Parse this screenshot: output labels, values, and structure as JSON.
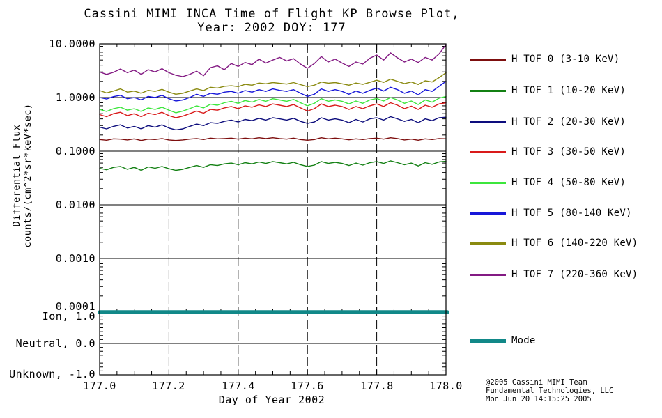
{
  "title": {
    "line1": "Cassini MIMI INCA Time of Flight KP Browse Plot,",
    "line2": "Year: 2002 DOY: 177"
  },
  "axes": {
    "y_title_line1": "Differential Flux",
    "y_title_line2": "counts/(cm^2*sr*keV*sec)",
    "x_title": "Day of Year 2002",
    "y_tick_labels": [
      "10.0000",
      "1.0000",
      "0.1000",
      "0.0100",
      "0.0010",
      "0.0001"
    ],
    "mode_tick_labels": [
      "Ion, 1.0",
      "Neutral, 0.0",
      "Unknown, -1.0"
    ],
    "x_tick_labels": [
      "177.0",
      "177.2",
      "177.4",
      "177.6",
      "177.8",
      "178.0"
    ]
  },
  "credits": {
    "line1": "@2005 Cassini MIMI Team",
    "line2": "Fundamental Technologies, LLC",
    "line3": "Mon Jun 20 14:15:25 2005"
  },
  "chart_data": {
    "type": "line",
    "title": "Cassini MIMI INCA Time of Flight KP Browse Plot, Year: 2002 DOY: 177",
    "xlabel": "Day of Year 2002",
    "ylabel": "Differential Flux counts/(cm^2*sr*keV*sec)",
    "x_range": [
      177.0,
      178.0
    ],
    "y_scale": "log",
    "y_range": [
      0.0001,
      10.0
    ],
    "x_major_ticks": [
      177.0,
      177.2,
      177.4,
      177.6,
      177.8,
      178.0
    ],
    "y_major_ticks": [
      10.0,
      1.0,
      0.1,
      0.01,
      0.001,
      0.0001
    ],
    "grid": {
      "vertical_dashed_at": [
        177.2,
        177.4,
        177.6,
        177.8
      ],
      "horizontal_solid_at": [
        1.0,
        0.1,
        0.01,
        0.001
      ]
    },
    "legend_position": "right",
    "x_start": 177.0,
    "x_step": 0.02,
    "n_points": 51,
    "series": [
      {
        "name": "H TOF 0 (3-10 KeV)",
        "color": "#7d0e0e",
        "values": [
          0.165,
          0.16,
          0.17,
          0.168,
          0.162,
          0.17,
          0.158,
          0.168,
          0.165,
          0.172,
          0.162,
          0.158,
          0.162,
          0.168,
          0.172,
          0.165,
          0.175,
          0.17,
          0.172,
          0.175,
          0.168,
          0.175,
          0.17,
          0.178,
          0.172,
          0.178,
          0.172,
          0.168,
          0.175,
          0.165,
          0.16,
          0.165,
          0.178,
          0.17,
          0.175,
          0.17,
          0.163,
          0.17,
          0.165,
          0.172,
          0.175,
          0.168,
          0.178,
          0.172,
          0.162,
          0.168,
          0.16,
          0.17,
          0.165,
          0.172,
          0.17
        ]
      },
      {
        "name": "H TOF 1 (10-20 KeV)",
        "color": "#138013",
        "values": [
          0.048,
          0.045,
          0.05,
          0.052,
          0.046,
          0.05,
          0.044,
          0.051,
          0.048,
          0.052,
          0.047,
          0.044,
          0.046,
          0.05,
          0.054,
          0.05,
          0.056,
          0.054,
          0.058,
          0.06,
          0.056,
          0.061,
          0.058,
          0.063,
          0.059,
          0.064,
          0.061,
          0.058,
          0.062,
          0.056,
          0.052,
          0.055,
          0.064,
          0.059,
          0.062,
          0.059,
          0.054,
          0.06,
          0.055,
          0.061,
          0.064,
          0.059,
          0.066,
          0.061,
          0.056,
          0.06,
          0.053,
          0.061,
          0.057,
          0.063,
          0.065
        ]
      },
      {
        "name": "H TOF 2 (20-30 KeV)",
        "color": "#0d0d7d",
        "values": [
          0.28,
          0.26,
          0.29,
          0.31,
          0.27,
          0.29,
          0.26,
          0.3,
          0.28,
          0.31,
          0.27,
          0.25,
          0.26,
          0.29,
          0.32,
          0.3,
          0.34,
          0.33,
          0.36,
          0.38,
          0.35,
          0.39,
          0.37,
          0.41,
          0.38,
          0.42,
          0.4,
          0.38,
          0.41,
          0.36,
          0.33,
          0.35,
          0.42,
          0.38,
          0.4,
          0.38,
          0.34,
          0.39,
          0.35,
          0.4,
          0.42,
          0.38,
          0.44,
          0.4,
          0.36,
          0.39,
          0.34,
          0.4,
          0.37,
          0.42,
          0.43
        ]
      },
      {
        "name": "H TOF 3 (30-50 KeV)",
        "color": "#d91a1a",
        "values": [
          0.48,
          0.44,
          0.5,
          0.53,
          0.46,
          0.5,
          0.44,
          0.51,
          0.48,
          0.53,
          0.46,
          0.42,
          0.45,
          0.5,
          0.56,
          0.51,
          0.6,
          0.58,
          0.64,
          0.68,
          0.62,
          0.7,
          0.66,
          0.73,
          0.68,
          0.76,
          0.72,
          0.68,
          0.74,
          0.64,
          0.56,
          0.62,
          0.76,
          0.68,
          0.72,
          0.68,
          0.6,
          0.68,
          0.62,
          0.7,
          0.76,
          0.68,
          0.8,
          0.72,
          0.62,
          0.69,
          0.6,
          0.72,
          0.66,
          0.76,
          0.8
        ]
      },
      {
        "name": "H TOF 4 (50-80 KeV)",
        "color": "#3ce63c",
        "values": [
          0.6,
          0.55,
          0.62,
          0.66,
          0.58,
          0.62,
          0.55,
          0.64,
          0.6,
          0.66,
          0.58,
          0.52,
          0.56,
          0.62,
          0.7,
          0.64,
          0.75,
          0.72,
          0.8,
          0.85,
          0.78,
          0.88,
          0.82,
          0.92,
          0.85,
          0.95,
          0.9,
          0.85,
          0.92,
          0.8,
          0.7,
          0.78,
          0.95,
          0.85,
          0.9,
          0.85,
          0.76,
          0.86,
          0.78,
          0.9,
          0.96,
          0.86,
          1.0,
          0.9,
          0.78,
          0.86,
          0.74,
          0.9,
          0.82,
          0.97,
          1.05
        ]
      },
      {
        "name": "H TOF 5 (80-140 KeV)",
        "color": "#1717d9",
        "values": [
          1.0,
          0.94,
          1.04,
          1.1,
          0.95,
          1.0,
          0.9,
          1.05,
          1.0,
          1.1,
          0.95,
          0.86,
          0.9,
          1.0,
          1.15,
          1.05,
          1.2,
          1.15,
          1.26,
          1.3,
          1.2,
          1.35,
          1.26,
          1.4,
          1.3,
          1.45,
          1.36,
          1.3,
          1.4,
          1.2,
          1.05,
          1.15,
          1.45,
          1.3,
          1.4,
          1.3,
          1.15,
          1.32,
          1.2,
          1.36,
          1.5,
          1.32,
          1.55,
          1.4,
          1.2,
          1.32,
          1.12,
          1.4,
          1.3,
          1.62,
          2.0
        ]
      },
      {
        "name": "H TOF 6 (140-220 KeV)",
        "color": "#8a8a10",
        "values": [
          1.35,
          1.22,
          1.32,
          1.45,
          1.26,
          1.32,
          1.2,
          1.36,
          1.3,
          1.42,
          1.26,
          1.15,
          1.2,
          1.32,
          1.45,
          1.35,
          1.55,
          1.5,
          1.62,
          1.66,
          1.6,
          1.76,
          1.7,
          1.86,
          1.8,
          1.9,
          1.84,
          1.78,
          1.9,
          1.74,
          1.6,
          1.7,
          1.95,
          1.85,
          1.9,
          1.8,
          1.7,
          1.86,
          1.76,
          1.92,
          2.1,
          1.92,
          2.2,
          2.0,
          1.82,
          1.95,
          1.75,
          2.05,
          1.95,
          2.35,
          2.9
        ]
      },
      {
        "name": "H TOF 7 (220-360 KeV)",
        "color": "#831a83",
        "values": [
          3.0,
          2.7,
          2.95,
          3.4,
          2.9,
          3.25,
          2.7,
          3.3,
          3.0,
          3.45,
          2.9,
          2.6,
          2.45,
          2.7,
          3.1,
          2.55,
          3.6,
          3.9,
          3.3,
          4.3,
          3.8,
          4.5,
          4.1,
          5.2,
          4.4,
          5.0,
          5.6,
          4.8,
          5.3,
          4.2,
          3.5,
          4.3,
          5.8,
          4.6,
          5.2,
          4.4,
          3.8,
          4.6,
          4.2,
          5.4,
          6.2,
          5.0,
          6.8,
          5.5,
          4.6,
          5.2,
          4.5,
          5.6,
          5.0,
          6.5,
          9.7
        ]
      }
    ],
    "mode_series": {
      "name": "Mode",
      "color": "#118888",
      "axis": "mode",
      "constant_value": 1.0,
      "mode_axis_labels": [
        {
          "label": "Ion",
          "value": 1.0
        },
        {
          "label": "Neutral",
          "value": 0.0
        },
        {
          "label": "Unknown",
          "value": -1.0
        }
      ]
    }
  }
}
